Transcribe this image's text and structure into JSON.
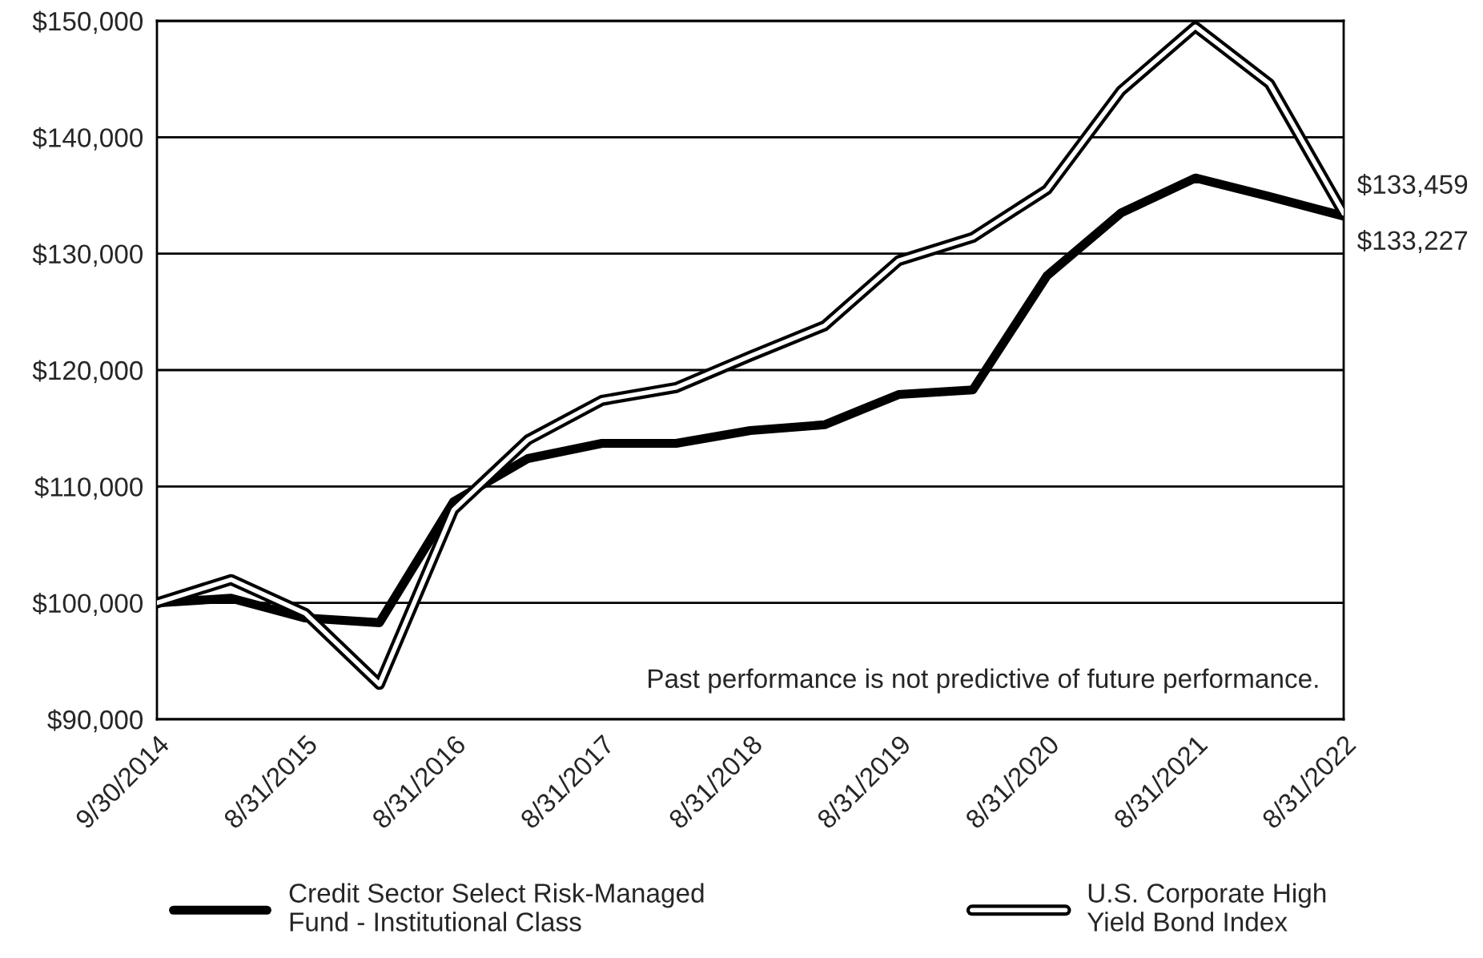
{
  "chart_data": {
    "type": "line",
    "categories": [
      "9/30/2014",
      null,
      "8/31/2015",
      null,
      "8/31/2016",
      null,
      "8/31/2017",
      null,
      "8/31/2018",
      null,
      "8/31/2019",
      null,
      "8/31/2020",
      null,
      "8/31/2021",
      null,
      "8/31/2022"
    ],
    "series": [
      {
        "name": "Credit Sector Select Risk-Managed Fund - Institutional Class",
        "color": "#000000",
        "values": [
          100000,
          100400,
          98700,
          98300,
          108700,
          112400,
          113700,
          113700,
          114800,
          115300,
          117900,
          118300,
          128100,
          133500,
          136500,
          134900,
          133227
        ]
      },
      {
        "name": "U.S. Corporate High Yield Bond Index",
        "color": "#000000",
        "values": [
          100000,
          102000,
          99100,
          93000,
          108000,
          114000,
          117400,
          118500,
          121200,
          123800,
          129400,
          131400,
          135500,
          144000,
          149500,
          144600,
          133459
        ]
      }
    ],
    "ylim": [
      90000,
      150000
    ],
    "yticks": [
      {
        "value": 90000,
        "label": "$90,000"
      },
      {
        "value": 100000,
        "label": "$100,000"
      },
      {
        "value": 110000,
        "label": "$110,000"
      },
      {
        "value": 120000,
        "label": "$120,000"
      },
      {
        "value": 130000,
        "label": "$130,000"
      },
      {
        "value": 140000,
        "label": "$140,000"
      },
      {
        "value": 150000,
        "label": "$150,000"
      }
    ],
    "grid": "y",
    "legend": "bottom",
    "annotations": [
      {
        "text": "$133,459",
        "x": "8/31/2022",
        "y": 133459
      },
      {
        "text": "$133,227",
        "x": "8/31/2022",
        "y": 133227
      },
      "Past performance is not predictive of future performance."
    ]
  }
}
